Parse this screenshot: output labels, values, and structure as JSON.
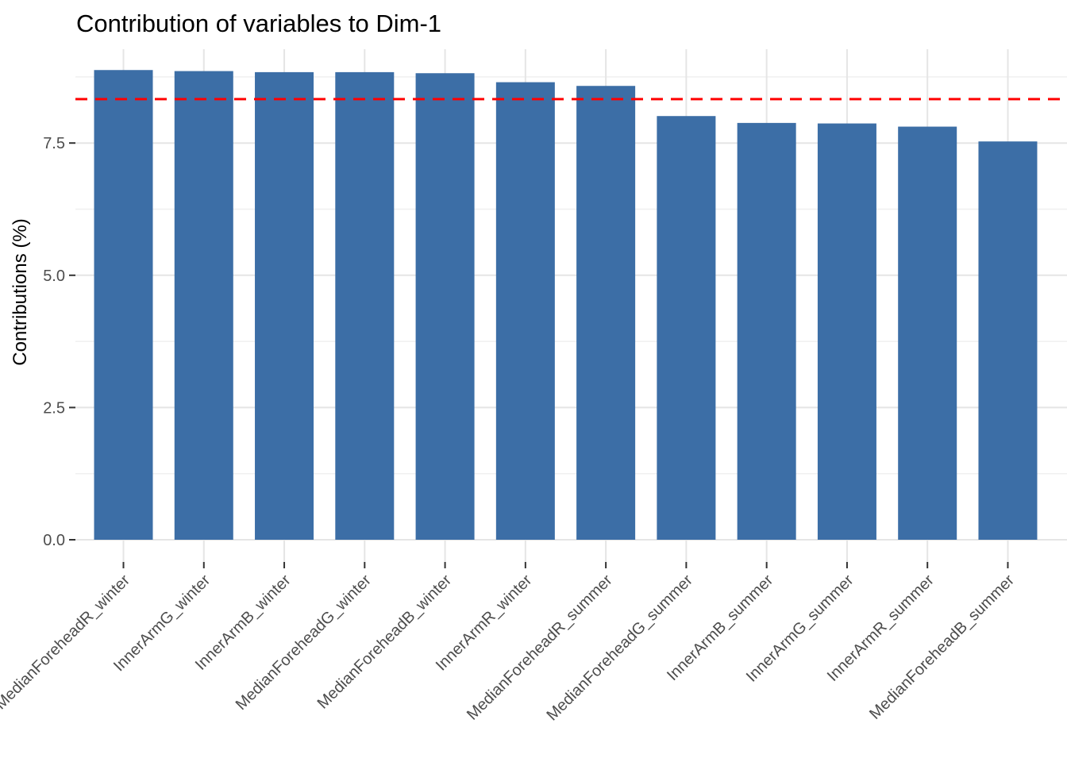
{
  "chart_data": {
    "type": "bar",
    "title": "Contribution of variables to Dim-1",
    "xlabel": "",
    "ylabel": "Contributions (%)",
    "categories": [
      "MedianForeheadR_winter",
      "InnerArmG_winter",
      "InnerArmB_winter",
      "MedianForeheadG_winter",
      "MedianForeheadB_winter",
      "InnerArmR_winter",
      "MedianForeheadR_summer",
      "MedianForeheadG_summer",
      "InnerArmB_summer",
      "InnerArmG_summer",
      "InnerArmR_summer",
      "MedianForeheadB_summer"
    ],
    "values": [
      8.88,
      8.86,
      8.84,
      8.84,
      8.82,
      8.65,
      8.58,
      8.01,
      7.88,
      7.87,
      7.81,
      7.53
    ],
    "y_ticks": {
      "labels": [
        "0.0",
        "2.5",
        "5.0",
        "7.5"
      ],
      "values": [
        0,
        2.5,
        5,
        7.5
      ]
    },
    "y_minor_ticks": [
      1.25,
      3.75,
      6.25,
      8.75
    ],
    "ylim": [
      -0.46,
      9.27
    ],
    "reference_line": {
      "value": 8.33,
      "color": "#FF0000",
      "style": "dashed"
    },
    "bar_color": "#3C6EA6",
    "grid": "on",
    "legend": "none",
    "colors": {
      "axis_text": "#4D4D4D",
      "gridline_major": "#E5E5E5",
      "gridline_minor": "#F0F0F0",
      "tick_mark": "#333333"
    }
  }
}
